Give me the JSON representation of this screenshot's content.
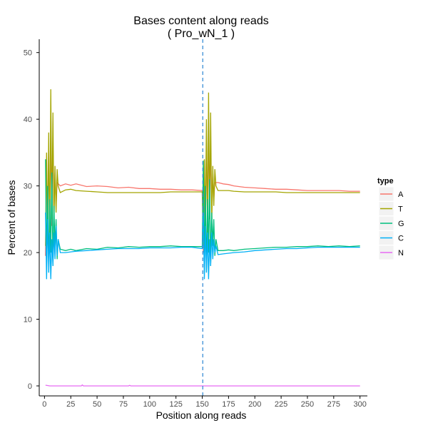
{
  "chart_data": {
    "type": "line",
    "title": "Bases content along reads",
    "subtitle": "( Pro_wN_1 )",
    "xlabel": "Position along reads",
    "ylabel": "Percent of bases",
    "xlim": [
      -5,
      307
    ],
    "ylim": [
      -1.5,
      52
    ],
    "xticks": [
      0,
      25,
      50,
      75,
      100,
      125,
      150,
      175,
      200,
      225,
      250,
      275,
      300
    ],
    "yticks": [
      0,
      10,
      20,
      30,
      40,
      50
    ],
    "grid": false,
    "vline": {
      "x": 150.5,
      "style": "dashed",
      "color": "#3a8fd6"
    },
    "legend": {
      "title": "type",
      "position": "right"
    },
    "series": [
      {
        "name": "A",
        "color": "#f8766d",
        "x": [
          1,
          2,
          3,
          4,
          5,
          6,
          7,
          8,
          9,
          10,
          11,
          12,
          15,
          20,
          25,
          30,
          40,
          50,
          60,
          70,
          80,
          90,
          100,
          110,
          120,
          130,
          140,
          150,
          151,
          152,
          153,
          154,
          155,
          156,
          157,
          158,
          159,
          160,
          161,
          162,
          165,
          170,
          175,
          180,
          190,
          200,
          210,
          220,
          230,
          240,
          250,
          260,
          270,
          280,
          290,
          300
        ],
        "y": [
          19.5,
          33,
          25,
          36,
          22,
          38.5,
          24,
          37,
          26,
          32,
          27,
          30.5,
          30,
          30.3,
          30.1,
          30.3,
          29.9,
          30,
          29.9,
          29.7,
          29.8,
          29.6,
          29.6,
          29.5,
          29.5,
          29.4,
          29.4,
          29.3,
          20,
          31,
          22,
          37.5,
          25,
          38.5,
          25,
          36,
          27,
          32,
          28,
          30.5,
          30.5,
          30.3,
          30.2,
          30,
          29.8,
          29.7,
          29.6,
          29.5,
          29.5,
          29.4,
          29.3,
          29.3,
          29.3,
          29.3,
          29.2,
          29.2
        ]
      },
      {
        "name": "T",
        "color": "#a3a500",
        "x": [
          1,
          2,
          3,
          4,
          5,
          6,
          7,
          8,
          9,
          10,
          11,
          12,
          13,
          15,
          20,
          25,
          30,
          40,
          50,
          60,
          70,
          80,
          90,
          100,
          110,
          120,
          130,
          140,
          150,
          151,
          152,
          153,
          154,
          155,
          156,
          157,
          158,
          159,
          160,
          161,
          162,
          163,
          165,
          170,
          175,
          180,
          190,
          200,
          210,
          220,
          230,
          240,
          250,
          260,
          270,
          280,
          290,
          300
        ],
        "y": [
          21,
          35,
          22,
          38,
          20,
          44.5,
          25,
          41,
          24,
          33,
          26,
          32.5,
          30,
          29,
          29.4,
          29.5,
          29.3,
          29.2,
          29.1,
          29,
          29,
          29,
          29,
          29,
          29,
          29.1,
          29.1,
          29.1,
          29.1,
          21,
          34,
          23,
          40,
          22,
          44,
          25,
          41,
          24,
          33,
          27,
          32.5,
          30,
          29.3,
          29.3,
          29.3,
          29.2,
          29.1,
          29.1,
          29.1,
          29.1,
          29,
          29,
          29,
          29,
          29,
          29,
          29,
          29
        ]
      },
      {
        "name": "G",
        "color": "#00bf7d",
        "x": [
          1,
          2,
          3,
          4,
          5,
          6,
          7,
          8,
          9,
          10,
          11,
          12,
          13,
          15,
          20,
          25,
          30,
          40,
          50,
          60,
          70,
          80,
          90,
          100,
          110,
          120,
          130,
          140,
          150,
          151,
          152,
          153,
          154,
          155,
          156,
          157,
          158,
          159,
          160,
          161,
          162,
          163,
          165,
          170,
          175,
          180,
          190,
          200,
          210,
          220,
          230,
          240,
          250,
          260,
          270,
          280,
          290,
          300
        ],
        "y": [
          34,
          18,
          30,
          17,
          28,
          20,
          32,
          18,
          27,
          21,
          25,
          19,
          22,
          20.5,
          20.3,
          20.5,
          20.3,
          20.6,
          20.5,
          20.8,
          20.7,
          20.9,
          20.8,
          20.9,
          20.9,
          21,
          20.9,
          20.9,
          20.9,
          33.8,
          18,
          30,
          17,
          28,
          20,
          31,
          18,
          26,
          21,
          25,
          19.5,
          22,
          20.3,
          20.3,
          20.4,
          20.3,
          20.5,
          20.6,
          20.7,
          20.8,
          20.8,
          20.9,
          20.9,
          21,
          20.9,
          21,
          20.9,
          21
        ]
      },
      {
        "name": "C",
        "color": "#00b0f6",
        "x": [
          1,
          2,
          3,
          4,
          5,
          6,
          7,
          8,
          9,
          10,
          11,
          12,
          13,
          15,
          20,
          25,
          30,
          40,
          50,
          60,
          70,
          80,
          90,
          100,
          110,
          120,
          130,
          140,
          150,
          151,
          152,
          153,
          154,
          155,
          156,
          157,
          158,
          159,
          160,
          161,
          162,
          163,
          165,
          170,
          175,
          180,
          190,
          200,
          210,
          220,
          230,
          240,
          250,
          260,
          270,
          280,
          290,
          300
        ],
        "y": [
          26,
          16,
          25,
          17,
          23,
          16,
          22,
          18,
          23,
          19,
          24,
          19.5,
          22,
          20,
          20,
          20.1,
          20.2,
          20.3,
          20.4,
          20.5,
          20.6,
          20.6,
          20.6,
          20.7,
          20.7,
          20.7,
          20.8,
          20.8,
          20.6,
          26,
          16,
          24,
          17,
          23,
          16,
          22,
          18,
          23,
          19,
          22,
          20,
          21,
          19.7,
          19.8,
          19.9,
          20,
          20.1,
          20.3,
          20.4,
          20.5,
          20.6,
          20.6,
          20.7,
          20.8,
          20.8,
          20.8,
          20.8,
          20.8
        ]
      },
      {
        "name": "N",
        "color": "#e76bf3",
        "x": [
          1,
          5,
          10,
          20,
          30,
          35,
          36,
          37,
          40,
          50,
          60,
          70,
          80,
          81,
          82,
          90,
          100,
          150,
          200,
          250,
          300
        ],
        "y": [
          0.1,
          0,
          0,
          0,
          0,
          0,
          0.15,
          0,
          0,
          0,
          0,
          0,
          0,
          0.08,
          0,
          0,
          0,
          0,
          0,
          0,
          0
        ]
      }
    ]
  }
}
